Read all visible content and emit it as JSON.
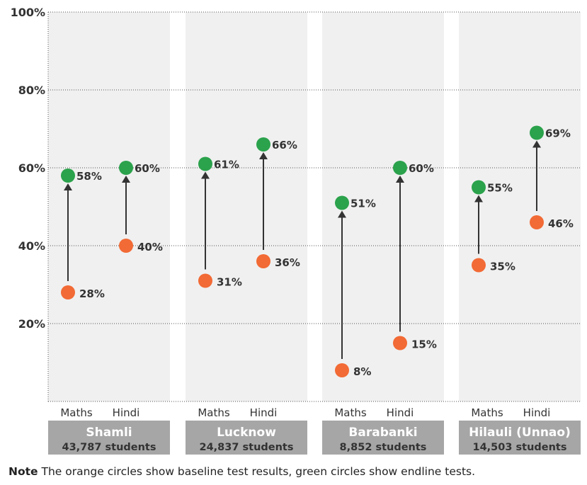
{
  "chart_data": {
    "type": "dot-arrow",
    "y_ticks": [
      "100%",
      "80%",
      "60%",
      "40%",
      "20%"
    ],
    "y_tick_values": [
      100,
      80,
      60,
      40,
      20
    ],
    "ylim": [
      0,
      100
    ],
    "grid": true,
    "series": [
      {
        "name": "baseline",
        "color": "#f26a35"
      },
      {
        "name": "endline",
        "color": "#2ba24c"
      }
    ],
    "groups": [
      {
        "district": "Shamli",
        "students": "43,787 students",
        "subjects": [
          {
            "label": "Maths",
            "baseline": 28,
            "endline": 58,
            "baseline_label": "28%",
            "endline_label": "58%"
          },
          {
            "label": "Hindi",
            "baseline": 40,
            "endline": 60,
            "baseline_label": "40%",
            "endline_label": "60%"
          }
        ]
      },
      {
        "district": "Lucknow",
        "students": "24,837 students",
        "subjects": [
          {
            "label": "Maths",
            "baseline": 31,
            "endline": 61,
            "baseline_label": "31%",
            "endline_label": "61%"
          },
          {
            "label": "Hindi",
            "baseline": 36,
            "endline": 66,
            "baseline_label": "36%",
            "endline_label": "66%"
          }
        ]
      },
      {
        "district": "Barabanki",
        "students": "8,852 students",
        "subjects": [
          {
            "label": "Maths",
            "baseline": 8,
            "endline": 51,
            "baseline_label": "8%",
            "endline_label": "51%"
          },
          {
            "label": "Hindi",
            "baseline": 15,
            "endline": 60,
            "baseline_label": "15%",
            "endline_label": "60%"
          }
        ]
      },
      {
        "district": "Hilauli (Unnao)",
        "students": "14,503 students",
        "subjects": [
          {
            "label": "Maths",
            "baseline": 35,
            "endline": 55,
            "baseline_label": "35%",
            "endline_label": "55%"
          },
          {
            "label": "Hindi",
            "baseline": 46,
            "endline": 69,
            "baseline_label": "46%",
            "endline_label": "69%"
          }
        ]
      }
    ]
  },
  "note": {
    "lead": "Note",
    "text": " The orange circles show baseline test results, green circles show endline tests."
  }
}
